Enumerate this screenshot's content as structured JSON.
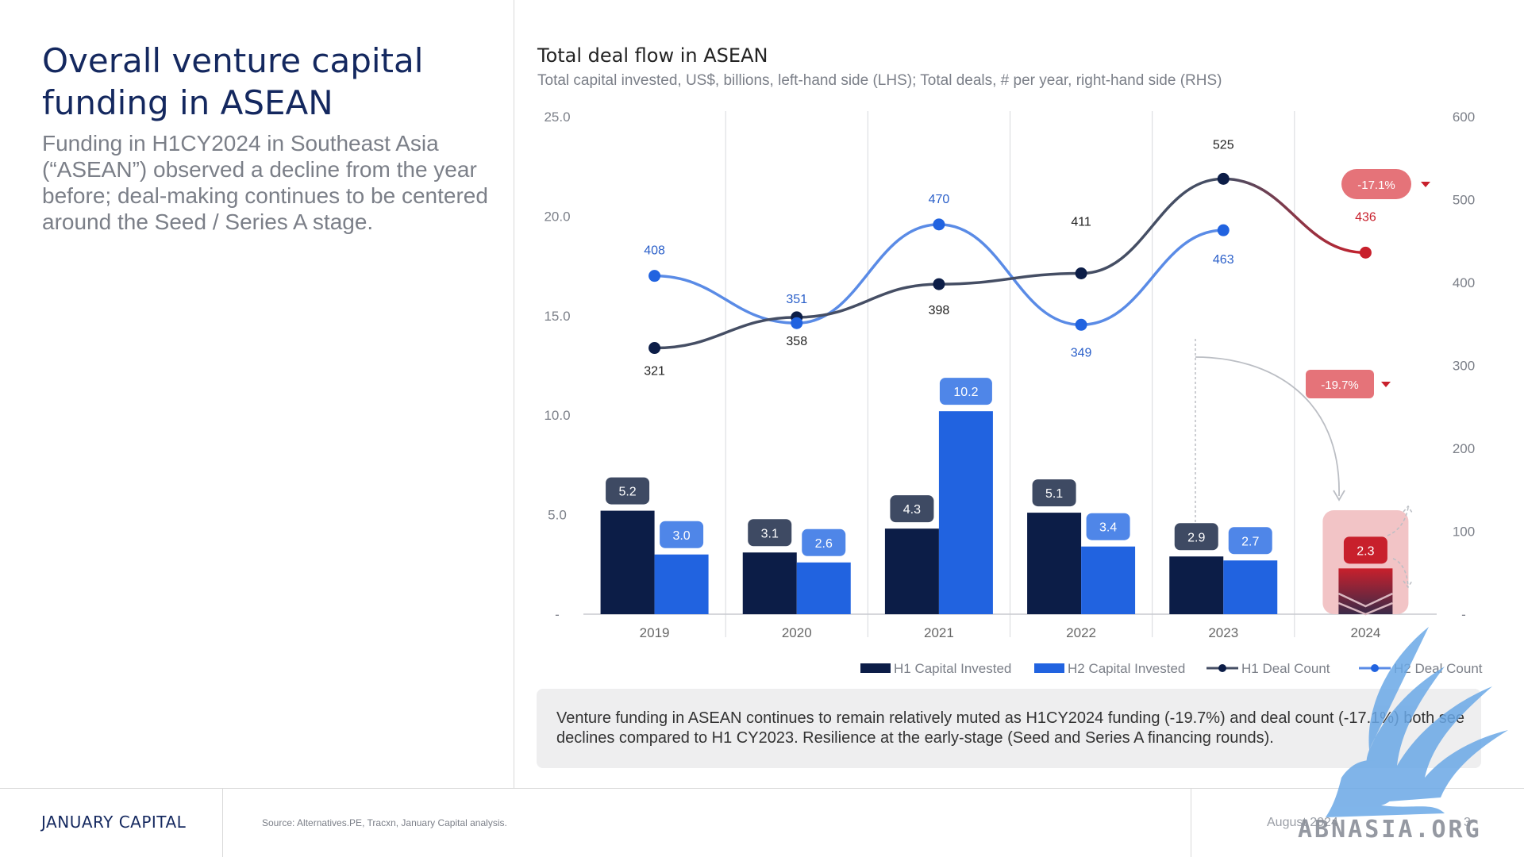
{
  "left": {
    "title": "Overall venture capital funding in ASEAN",
    "subtitle": "Funding in H1CY2024 in Southeast Asia (“ASEAN”) observed a decline from the year before; deal-making continues to be centered around the Seed / Series A stage."
  },
  "colors": {
    "h1_bar": "#0c1d47",
    "h2_bar": "#2163e0",
    "h1_line": "#454e64",
    "h2_line": "#5a8be6",
    "decline": "#c8202c",
    "decline_badge": "#e57379",
    "label_dark": "#3e4a63",
    "label_blue": "#4f86e8"
  },
  "chart_data": {
    "type": "bar",
    "title": "Total deal flow in ASEAN",
    "subtitle": "Total capital invested, US$, billions, left-hand side (LHS); Total deals, # per year, right-hand side (RHS)",
    "categories": [
      "2019",
      "2020",
      "2021",
      "2022",
      "2023",
      "2024"
    ],
    "y_left": {
      "ticks": [
        "25.0",
        "20.0",
        "15.0",
        "10.0",
        "5.0",
        "-"
      ],
      "ylim": [
        0,
        25
      ]
    },
    "y_right": {
      "ticks": [
        "600",
        "500",
        "400",
        "300",
        "200",
        "100",
        "-"
      ],
      "ylim": [
        0,
        600
      ]
    },
    "series": [
      {
        "name": "H1 Capital Invested",
        "kind": "bar",
        "axis": "left",
        "values": [
          5.2,
          3.1,
          4.3,
          5.1,
          2.9,
          2.3
        ],
        "labels": [
          "5.2",
          "3.1",
          "4.3",
          "5.1",
          "2.9",
          "2.3"
        ]
      },
      {
        "name": "H2 Capital Invested",
        "kind": "bar",
        "axis": "left",
        "values": [
          3.0,
          2.6,
          10.2,
          3.4,
          2.7,
          null
        ],
        "labels": [
          "3.0",
          "2.6",
          "10.2",
          "3.4",
          "2.7",
          ""
        ]
      },
      {
        "name": "H1 Deal Count",
        "kind": "line",
        "axis": "right",
        "values": [
          321,
          358,
          398,
          411,
          525,
          436
        ],
        "labels": [
          "321",
          "358",
          "398",
          "411",
          "525",
          "436"
        ]
      },
      {
        "name": "H2 Deal Count",
        "kind": "line",
        "axis": "right",
        "values": [
          408,
          351,
          470,
          349,
          463,
          null
        ],
        "labels": [
          "408",
          "351",
          "470",
          "349",
          "463",
          ""
        ]
      }
    ],
    "annotations": {
      "deal_change": "-17.1%",
      "funding_change": "-19.7%"
    },
    "grid": "vertical separators",
    "legend": "bottom-right"
  },
  "note": "Venture funding in ASEAN continues to remain relatively muted as H1CY2024 funding (-19.7%) and deal count (-17.1%) both see declines compared to H1 CY2023. Resilience at the early-stage (Seed and Series A financing rounds).",
  "footer": {
    "brand": "JANUARY CAPITAL",
    "source": "Source: Alternatives.PE, Tracxn, January Capital analysis.",
    "date": "August 2024",
    "page": "3"
  },
  "watermark": {
    "text": "ABNASIA.ORG",
    "icon": "griffin-logo-icon"
  }
}
